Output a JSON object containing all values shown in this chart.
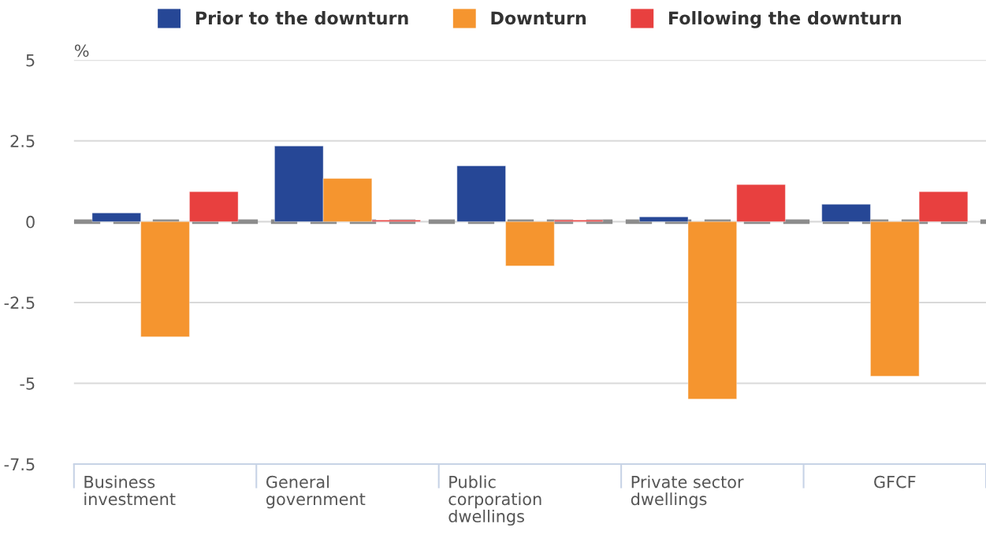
{
  "chart_data": {
    "type": "bar",
    "categories": [
      "Business\ninvestment",
      "General\ngovernment",
      "Public\ncorporation\ndwellings",
      "Private sector\ndwellings",
      "GFCF"
    ],
    "series": [
      {
        "name": "Prior to the downturn",
        "color": "#264796",
        "values": [
          0.27,
          2.34,
          1.73,
          0.15,
          0.54
        ]
      },
      {
        "name": "Downturn",
        "color": "#f5952f",
        "values": [
          -3.56,
          1.34,
          -1.37,
          -5.49,
          -4.78
        ]
      },
      {
        "name": "Following the downturn",
        "color": "#e8403f",
        "values": [
          0.93,
          0.05,
          0.05,
          1.15,
          0.93
        ]
      }
    ],
    "ylabel": "%",
    "ylim": [
      -7.5,
      5
    ],
    "yticks": [
      {
        "value": -7.5,
        "label": "-7.5"
      },
      {
        "value": -5,
        "label": "-5"
      },
      {
        "value": -2.5,
        "label": "-2.5"
      },
      0,
      2.5,
      5
    ],
    "grid": "y",
    "legend": "top",
    "ref_lines": [
      {
        "axis": "y",
        "value": 0,
        "color": "#8c8c8c",
        "line_style": "dashed"
      }
    ]
  }
}
